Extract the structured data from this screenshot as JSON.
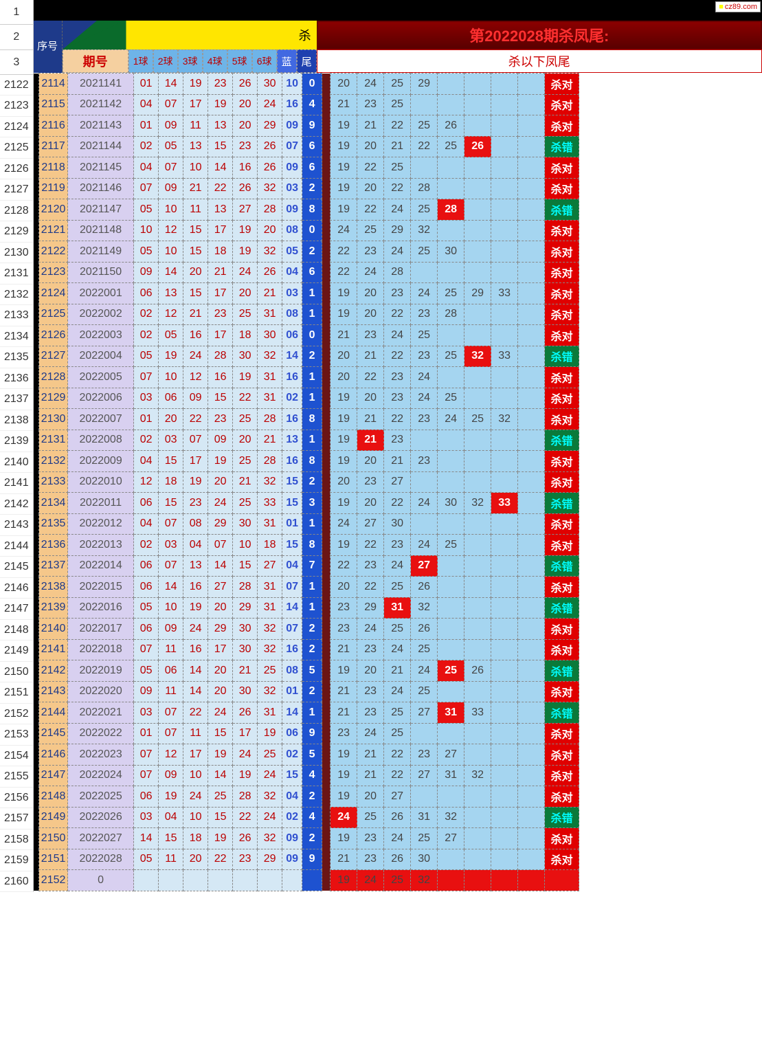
{
  "watermark": "cz89.com",
  "header": {
    "seq_label": "序号",
    "diag_text": "杀",
    "issue_label": "期号",
    "ball_labels": [
      "1球",
      "2球",
      "3球",
      "4球",
      "5球",
      "6球"
    ],
    "lan_label": "蓝",
    "wei_label": "尾",
    "right_title1": "第2022028期杀凤尾:",
    "right_title2": "杀以下凤尾"
  },
  "left_rownums_top": [
    "1",
    "2",
    "3"
  ],
  "left_rownums": [
    "2122",
    "2123",
    "2124",
    "2125",
    "2126",
    "2127",
    "2128",
    "2129",
    "2130",
    "2131",
    "2132",
    "2133",
    "2134",
    "2135",
    "2136",
    "2137",
    "2138",
    "2139",
    "2140",
    "2141",
    "2142",
    "2143",
    "2144",
    "2145",
    "2146",
    "2147",
    "2148",
    "2149",
    "2150",
    "2151",
    "2152",
    "2153",
    "2154",
    "2155",
    "2156",
    "2157",
    "2158",
    "2159",
    "2160"
  ],
  "result_ok": "杀对",
  "result_ng": "杀错",
  "colors": {
    "seq_bg": "#f5c78a",
    "issue_bg": "#d8d0f0",
    "ball_bg": "#d5e8f5",
    "wei_bg": "#1e52d0",
    "right_bg": "#a5d5f0",
    "hit_bg": "#e81010",
    "ok_bg": "#e00000",
    "ng_bg": "#0a7a3a"
  },
  "rows": [
    {
      "seq": "2114",
      "issue": "2021141",
      "balls": [
        "01",
        "14",
        "19",
        "23",
        "26",
        "30"
      ],
      "lan": "10",
      "wei": "0",
      "right": [
        "20",
        "24",
        "25",
        "29",
        "",
        "",
        "",
        ""
      ],
      "hits": [],
      "res": "ok"
    },
    {
      "seq": "2115",
      "issue": "2021142",
      "balls": [
        "04",
        "07",
        "17",
        "19",
        "20",
        "24"
      ],
      "lan": "16",
      "wei": "4",
      "right": [
        "21",
        "23",
        "25",
        "",
        "",
        "",
        "",
        ""
      ],
      "hits": [],
      "res": "ok"
    },
    {
      "seq": "2116",
      "issue": "2021143",
      "balls": [
        "01",
        "09",
        "11",
        "13",
        "20",
        "29"
      ],
      "lan": "09",
      "wei": "9",
      "right": [
        "19",
        "21",
        "22",
        "25",
        "26",
        "",
        "",
        ""
      ],
      "hits": [],
      "res": "ok"
    },
    {
      "seq": "2117",
      "issue": "2021144",
      "balls": [
        "02",
        "05",
        "13",
        "15",
        "23",
        "26"
      ],
      "lan": "07",
      "wei": "6",
      "right": [
        "19",
        "20",
        "21",
        "22",
        "25",
        "26",
        "",
        ""
      ],
      "hits": [
        5
      ],
      "res": "ng"
    },
    {
      "seq": "2118",
      "issue": "2021145",
      "balls": [
        "04",
        "07",
        "10",
        "14",
        "16",
        "26"
      ],
      "lan": "09",
      "wei": "6",
      "right": [
        "19",
        "22",
        "25",
        "",
        "",
        "",
        "",
        ""
      ],
      "hits": [],
      "res": "ok"
    },
    {
      "seq": "2119",
      "issue": "2021146",
      "balls": [
        "07",
        "09",
        "21",
        "22",
        "26",
        "32"
      ],
      "lan": "03",
      "wei": "2",
      "right": [
        "19",
        "20",
        "22",
        "28",
        "",
        "",
        "",
        ""
      ],
      "hits": [],
      "res": "ok"
    },
    {
      "seq": "2120",
      "issue": "2021147",
      "balls": [
        "05",
        "10",
        "11",
        "13",
        "27",
        "28"
      ],
      "lan": "09",
      "wei": "8",
      "right": [
        "19",
        "22",
        "24",
        "25",
        "28",
        "",
        "",
        ""
      ],
      "hits": [
        4
      ],
      "res": "ng"
    },
    {
      "seq": "2121",
      "issue": "2021148",
      "balls": [
        "10",
        "12",
        "15",
        "17",
        "19",
        "20"
      ],
      "lan": "08",
      "wei": "0",
      "right": [
        "24",
        "25",
        "29",
        "32",
        "",
        "",
        "",
        ""
      ],
      "hits": [],
      "res": "ok"
    },
    {
      "seq": "2122",
      "issue": "2021149",
      "balls": [
        "05",
        "10",
        "15",
        "18",
        "19",
        "32"
      ],
      "lan": "05",
      "wei": "2",
      "right": [
        "22",
        "23",
        "24",
        "25",
        "30",
        "",
        "",
        ""
      ],
      "hits": [],
      "res": "ok"
    },
    {
      "seq": "2123",
      "issue": "2021150",
      "balls": [
        "09",
        "14",
        "20",
        "21",
        "24",
        "26"
      ],
      "lan": "04",
      "wei": "6",
      "right": [
        "22",
        "24",
        "28",
        "",
        "",
        "",
        "",
        ""
      ],
      "hits": [],
      "res": "ok"
    },
    {
      "seq": "2124",
      "issue": "2022001",
      "balls": [
        "06",
        "13",
        "15",
        "17",
        "20",
        "21"
      ],
      "lan": "03",
      "wei": "1",
      "right": [
        "19",
        "20",
        "23",
        "24",
        "25",
        "29",
        "33",
        ""
      ],
      "hits": [],
      "res": "ok"
    },
    {
      "seq": "2125",
      "issue": "2022002",
      "balls": [
        "02",
        "12",
        "21",
        "23",
        "25",
        "31"
      ],
      "lan": "08",
      "wei": "1",
      "right": [
        "19",
        "20",
        "22",
        "23",
        "28",
        "",
        "",
        ""
      ],
      "hits": [],
      "res": "ok"
    },
    {
      "seq": "2126",
      "issue": "2022003",
      "balls": [
        "02",
        "05",
        "16",
        "17",
        "18",
        "30"
      ],
      "lan": "06",
      "wei": "0",
      "right": [
        "21",
        "23",
        "24",
        "25",
        "",
        "",
        "",
        ""
      ],
      "hits": [],
      "res": "ok"
    },
    {
      "seq": "2127",
      "issue": "2022004",
      "balls": [
        "05",
        "19",
        "24",
        "28",
        "30",
        "32"
      ],
      "lan": "14",
      "wei": "2",
      "right": [
        "20",
        "21",
        "22",
        "23",
        "25",
        "32",
        "33",
        ""
      ],
      "hits": [
        5
      ],
      "res": "ng"
    },
    {
      "seq": "2128",
      "issue": "2022005",
      "balls": [
        "07",
        "10",
        "12",
        "16",
        "19",
        "31"
      ],
      "lan": "16",
      "wei": "1",
      "right": [
        "20",
        "22",
        "23",
        "24",
        "",
        "",
        "",
        ""
      ],
      "hits": [],
      "res": "ok"
    },
    {
      "seq": "2129",
      "issue": "2022006",
      "balls": [
        "03",
        "06",
        "09",
        "15",
        "22",
        "31"
      ],
      "lan": "02",
      "wei": "1",
      "right": [
        "19",
        "20",
        "23",
        "24",
        "25",
        "",
        "",
        ""
      ],
      "hits": [],
      "res": "ok"
    },
    {
      "seq": "2130",
      "issue": "2022007",
      "balls": [
        "01",
        "20",
        "22",
        "23",
        "25",
        "28"
      ],
      "lan": "16",
      "wei": "8",
      "right": [
        "19",
        "21",
        "22",
        "23",
        "24",
        "25",
        "32",
        ""
      ],
      "hits": [],
      "res": "ok"
    },
    {
      "seq": "2131",
      "issue": "2022008",
      "balls": [
        "02",
        "03",
        "07",
        "09",
        "20",
        "21"
      ],
      "lan": "13",
      "wei": "1",
      "right": [
        "19",
        "21",
        "23",
        "",
        "",
        "",
        "",
        ""
      ],
      "hits": [
        1
      ],
      "res": "ng"
    },
    {
      "seq": "2132",
      "issue": "2022009",
      "balls": [
        "04",
        "15",
        "17",
        "19",
        "25",
        "28"
      ],
      "lan": "16",
      "wei": "8",
      "right": [
        "19",
        "20",
        "21",
        "23",
        "",
        "",
        "",
        ""
      ],
      "hits": [],
      "res": "ok"
    },
    {
      "seq": "2133",
      "issue": "2022010",
      "balls": [
        "12",
        "18",
        "19",
        "20",
        "21",
        "32"
      ],
      "lan": "15",
      "wei": "2",
      "right": [
        "20",
        "23",
        "27",
        "",
        "",
        "",
        "",
        ""
      ],
      "hits": [],
      "res": "ok"
    },
    {
      "seq": "2134",
      "issue": "2022011",
      "balls": [
        "06",
        "15",
        "23",
        "24",
        "25",
        "33"
      ],
      "lan": "15",
      "wei": "3",
      "right": [
        "19",
        "20",
        "22",
        "24",
        "30",
        "32",
        "33",
        ""
      ],
      "hits": [
        6
      ],
      "res": "ng"
    },
    {
      "seq": "2135",
      "issue": "2022012",
      "balls": [
        "04",
        "07",
        "08",
        "29",
        "30",
        "31"
      ],
      "lan": "01",
      "wei": "1",
      "right": [
        "24",
        "27",
        "30",
        "",
        "",
        "",
        "",
        ""
      ],
      "hits": [],
      "res": "ok"
    },
    {
      "seq": "2136",
      "issue": "2022013",
      "balls": [
        "02",
        "03",
        "04",
        "07",
        "10",
        "18"
      ],
      "lan": "15",
      "wei": "8",
      "right": [
        "19",
        "22",
        "23",
        "24",
        "25",
        "",
        "",
        ""
      ],
      "hits": [],
      "res": "ok"
    },
    {
      "seq": "2137",
      "issue": "2022014",
      "balls": [
        "06",
        "07",
        "13",
        "14",
        "15",
        "27"
      ],
      "lan": "04",
      "wei": "7",
      "right": [
        "22",
        "23",
        "24",
        "27",
        "",
        "",
        "",
        ""
      ],
      "hits": [
        3
      ],
      "res": "ng"
    },
    {
      "seq": "2138",
      "issue": "2022015",
      "balls": [
        "06",
        "14",
        "16",
        "27",
        "28",
        "31"
      ],
      "lan": "07",
      "wei": "1",
      "right": [
        "20",
        "22",
        "25",
        "26",
        "",
        "",
        "",
        ""
      ],
      "hits": [],
      "res": "ok"
    },
    {
      "seq": "2139",
      "issue": "2022016",
      "balls": [
        "05",
        "10",
        "19",
        "20",
        "29",
        "31"
      ],
      "lan": "14",
      "wei": "1",
      "right": [
        "23",
        "29",
        "31",
        "32",
        "",
        "",
        "",
        ""
      ],
      "hits": [
        2
      ],
      "res": "ng"
    },
    {
      "seq": "2140",
      "issue": "2022017",
      "balls": [
        "06",
        "09",
        "24",
        "29",
        "30",
        "32"
      ],
      "lan": "07",
      "wei": "2",
      "right": [
        "23",
        "24",
        "25",
        "26",
        "",
        "",
        "",
        ""
      ],
      "hits": [],
      "res": "ok"
    },
    {
      "seq": "2141",
      "issue": "2022018",
      "balls": [
        "07",
        "11",
        "16",
        "17",
        "30",
        "32"
      ],
      "lan": "16",
      "wei": "2",
      "right": [
        "21",
        "23",
        "24",
        "25",
        "",
        "",
        "",
        ""
      ],
      "hits": [],
      "res": "ok"
    },
    {
      "seq": "2142",
      "issue": "2022019",
      "balls": [
        "05",
        "06",
        "14",
        "20",
        "21",
        "25"
      ],
      "lan": "08",
      "wei": "5",
      "right": [
        "19",
        "20",
        "21",
        "24",
        "25",
        "26",
        "",
        ""
      ],
      "hits": [
        4
      ],
      "res": "ng"
    },
    {
      "seq": "2143",
      "issue": "2022020",
      "balls": [
        "09",
        "11",
        "14",
        "20",
        "30",
        "32"
      ],
      "lan": "01",
      "wei": "2",
      "right": [
        "21",
        "23",
        "24",
        "25",
        "",
        "",
        "",
        ""
      ],
      "hits": [],
      "res": "ok"
    },
    {
      "seq": "2144",
      "issue": "2022021",
      "balls": [
        "03",
        "07",
        "22",
        "24",
        "26",
        "31"
      ],
      "lan": "14",
      "wei": "1",
      "right": [
        "21",
        "23",
        "25",
        "27",
        "31",
        "33",
        "",
        ""
      ],
      "hits": [
        4
      ],
      "res": "ng"
    },
    {
      "seq": "2145",
      "issue": "2022022",
      "balls": [
        "01",
        "07",
        "11",
        "15",
        "17",
        "19"
      ],
      "lan": "06",
      "wei": "9",
      "right": [
        "23",
        "24",
        "25",
        "",
        "",
        "",
        "",
        ""
      ],
      "hits": [],
      "res": "ok"
    },
    {
      "seq": "2146",
      "issue": "2022023",
      "balls": [
        "07",
        "12",
        "17",
        "19",
        "24",
        "25"
      ],
      "lan": "02",
      "wei": "5",
      "right": [
        "19",
        "21",
        "22",
        "23",
        "27",
        "",
        "",
        ""
      ],
      "hits": [],
      "res": "ok"
    },
    {
      "seq": "2147",
      "issue": "2022024",
      "balls": [
        "07",
        "09",
        "10",
        "14",
        "19",
        "24"
      ],
      "lan": "15",
      "wei": "4",
      "right": [
        "19",
        "21",
        "22",
        "27",
        "31",
        "32",
        "",
        ""
      ],
      "hits": [],
      "res": "ok"
    },
    {
      "seq": "2148",
      "issue": "2022025",
      "balls": [
        "06",
        "19",
        "24",
        "25",
        "28",
        "32"
      ],
      "lan": "04",
      "wei": "2",
      "right": [
        "19",
        "20",
        "27",
        "",
        "",
        "",
        "",
        ""
      ],
      "hits": [],
      "res": "ok"
    },
    {
      "seq": "2149",
      "issue": "2022026",
      "balls": [
        "03",
        "04",
        "10",
        "15",
        "22",
        "24"
      ],
      "lan": "02",
      "wei": "4",
      "right": [
        "24",
        "25",
        "26",
        "31",
        "32",
        "",
        "",
        ""
      ],
      "hits": [
        0
      ],
      "res": "ng"
    },
    {
      "seq": "2150",
      "issue": "2022027",
      "balls": [
        "14",
        "15",
        "18",
        "19",
        "26",
        "32"
      ],
      "lan": "09",
      "wei": "2",
      "right": [
        "19",
        "23",
        "24",
        "25",
        "27",
        "",
        "",
        ""
      ],
      "hits": [],
      "res": "ok"
    },
    {
      "seq": "2151",
      "issue": "2022028",
      "balls": [
        "05",
        "11",
        "20",
        "22",
        "23",
        "29"
      ],
      "lan": "09",
      "wei": "9",
      "right": [
        "21",
        "23",
        "26",
        "30",
        "",
        "",
        "",
        ""
      ],
      "hits": [],
      "res": "ok"
    },
    {
      "seq": "2152",
      "issue": "0",
      "balls": [
        "",
        "",
        "",
        "",
        "",
        ""
      ],
      "lan": "",
      "wei": "",
      "right": [
        "19",
        "24",
        "25",
        "32",
        "",
        "",
        "",
        ""
      ],
      "hits": [],
      "res": "",
      "last": true
    }
  ]
}
